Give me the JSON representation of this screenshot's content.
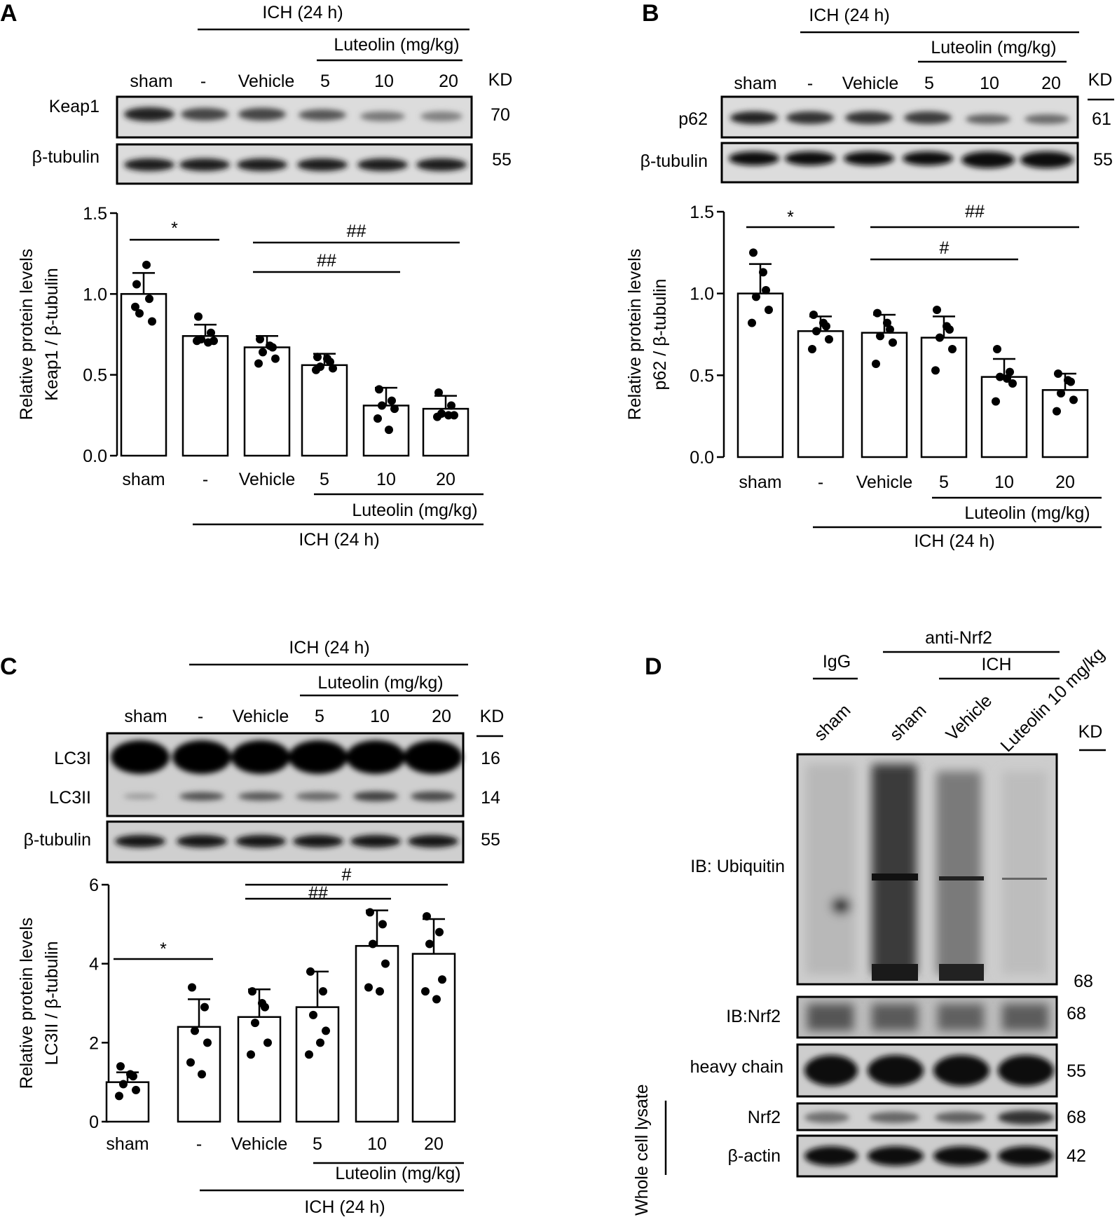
{
  "panels": [
    {
      "letter": "A",
      "blot": {
        "header": {
          "ich": "ICH (24 h)",
          "luteolin": "Luteolin (mg/kg)",
          "lanes": [
            "sham",
            "-",
            "Vehicle",
            "5",
            "10",
            "20"
          ],
          "kd": "KD"
        },
        "rows": [
          {
            "label": "Keap1",
            "kd": "70"
          },
          {
            "label": "β-tubulin",
            "kd": "55"
          }
        ]
      },
      "footer": {
        "luteolin": "Luteolin (mg/kg)",
        "ich": "ICH (24 h)"
      }
    },
    {
      "letter": "B",
      "blot": {
        "header": {
          "ich": "ICH (24 h)",
          "luteolin": "Luteolin (mg/kg)",
          "lanes": [
            "sham",
            "-",
            "Vehicle",
            "5",
            "10",
            "20"
          ],
          "kd": "KD"
        },
        "rows": [
          {
            "label": "p62",
            "kd": "61"
          },
          {
            "label": "β-tubulin",
            "kd": "55"
          }
        ]
      },
      "footer": {
        "luteolin": "Luteolin (mg/kg)",
        "ich": "ICH (24 h)"
      }
    },
    {
      "letter": "C",
      "blot": {
        "header": {
          "ich": "ICH (24 h)",
          "luteolin": "Luteolin (mg/kg)",
          "lanes": [
            "sham",
            "-",
            "Vehicle",
            "5",
            "10",
            "20"
          ],
          "kd": "KD"
        },
        "rows": [
          {
            "label": "LC3I",
            "kd": "16"
          },
          {
            "label": "LC3II",
            "kd": "14"
          },
          {
            "label": "β-tubulin",
            "kd": "55"
          }
        ]
      },
      "footer": {
        "luteolin": "Luteolin (mg/kg)",
        "ich": "ICH (24 h)"
      }
    },
    {
      "letter": "D",
      "header": {
        "igg": "IgG",
        "anti": "anti-Nrf2",
        "ich": "ICH",
        "lanes": [
          "sham",
          "sham",
          "Vehicle",
          "Luteolin 10 mg/kg"
        ],
        "kd": "KD"
      },
      "rows": [
        {
          "label": "IB: Ubiquitin",
          "kd": "68"
        },
        {
          "label": "IB:Nrf2",
          "kd": "68"
        },
        {
          "label": "heavy chain",
          "kd": "55"
        },
        {
          "label": "Nrf2",
          "kd": "68"
        },
        {
          "label": "β-actin",
          "kd": "42"
        }
      ],
      "side_label": "Whole cell lysate"
    }
  ],
  "chart_data": [
    {
      "panel": "A",
      "type": "bar",
      "categories": [
        "sham",
        "-",
        "Vehicle",
        "5",
        "10",
        "20"
      ],
      "values": [
        1.0,
        0.74,
        0.67,
        0.56,
        0.31,
        0.29
      ],
      "errors": [
        0.13,
        0.07,
        0.07,
        0.07,
        0.11,
        0.08
      ],
      "points": [
        [
          1.06,
          0.97,
          0.88,
          0.83,
          0.92,
          1.18
        ],
        [
          0.86,
          0.76,
          0.72,
          0.71,
          0.71,
          0.7
        ],
        [
          0.72,
          0.67,
          0.64,
          0.6,
          0.57,
          0.68
        ],
        [
          0.61,
          0.58,
          0.55,
          0.54,
          0.53,
          0.6
        ],
        [
          0.41,
          0.34,
          0.31,
          0.29,
          0.23,
          0.16
        ],
        [
          0.39,
          0.31,
          0.26,
          0.25,
          0.24,
          0.25
        ]
      ],
      "ylabel": [
        "Relative protein levels",
        "Keap1 / β-tubulin"
      ],
      "ylim": [
        0,
        1.5
      ],
      "yticks": [
        "0.0",
        "0.5",
        "1.0",
        "1.5"
      ],
      "significance": [
        {
          "from": 0,
          "to": 1,
          "label": "*"
        },
        {
          "from": 2,
          "to": 4,
          "label": "##"
        },
        {
          "from": 2,
          "to": 5,
          "label": "##"
        }
      ]
    },
    {
      "panel": "B",
      "type": "bar",
      "categories": [
        "sham",
        "-",
        "Vehicle",
        "5",
        "10",
        "20"
      ],
      "values": [
        1.0,
        0.77,
        0.76,
        0.73,
        0.49,
        0.41
      ],
      "errors": [
        0.18,
        0.09,
        0.11,
        0.13,
        0.11,
        0.1
      ],
      "points": [
        [
          1.25,
          1.02,
          0.98,
          0.9,
          0.82,
          1.13
        ],
        [
          0.87,
          0.8,
          0.77,
          0.72,
          0.66,
          0.82
        ],
        [
          0.88,
          0.78,
          0.74,
          0.7,
          0.57,
          0.82
        ],
        [
          0.9,
          0.78,
          0.73,
          0.66,
          0.53,
          0.8
        ],
        [
          0.66,
          0.52,
          0.49,
          0.45,
          0.34,
          0.48
        ],
        [
          0.51,
          0.46,
          0.39,
          0.35,
          0.28,
          0.47
        ]
      ],
      "ylabel": [
        "Relative protein levels",
        "p62 / β-tubulin"
      ],
      "ylim": [
        0,
        1.5
      ],
      "yticks": [
        "0.0",
        "0.5",
        "1.0",
        "1.5"
      ],
      "significance": [
        {
          "from": 0,
          "to": 1,
          "label": "*"
        },
        {
          "from": 2,
          "to": 4,
          "label": "#"
        },
        {
          "from": 2,
          "to": 5,
          "label": "##"
        }
      ]
    },
    {
      "panel": "C",
      "type": "bar",
      "categories": [
        "sham",
        "-",
        "Vehicle",
        "5",
        "10",
        "20"
      ],
      "values": [
        1.0,
        2.4,
        2.65,
        2.9,
        4.45,
        4.25
      ],
      "errors": [
        0.25,
        0.7,
        0.7,
        0.9,
        0.9,
        0.88
      ],
      "points": [
        [
          1.4,
          1.15,
          0.95,
          0.8,
          0.65,
          1.2
        ],
        [
          3.4,
          2.9,
          2.3,
          2.0,
          1.5,
          1.2
        ],
        [
          3.3,
          2.9,
          2.5,
          2.0,
          1.7,
          3.0
        ],
        [
          3.8,
          3.3,
          2.7,
          2.3,
          1.7,
          2.0
        ],
        [
          5.3,
          5.0,
          4.5,
          4.0,
          3.4,
          3.3
        ],
        [
          5.2,
          4.8,
          4.5,
          3.6,
          3.3,
          3.1
        ]
      ],
      "ylabel": [
        "Relative protein levels",
        "LC3II / β-tubulin"
      ],
      "ylim": [
        0,
        6
      ],
      "yticks": [
        "0",
        "2",
        "4",
        "6"
      ],
      "significance": [
        {
          "from": 0,
          "to": 1,
          "label": "*"
        },
        {
          "from": 2,
          "to": 4,
          "label": "##"
        },
        {
          "from": 2,
          "to": 5,
          "label": "#"
        }
      ]
    }
  ]
}
